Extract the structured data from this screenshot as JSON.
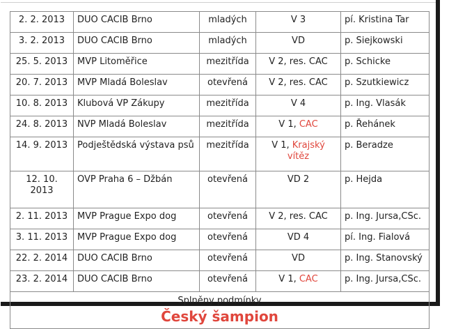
{
  "table": {
    "rows": [
      {
        "date": "2. 2. 2013",
        "show": "DUO CACIB Brno",
        "class": "mladých",
        "grade": "V 3",
        "grade_extra": "",
        "judge": "pí. Kristina Tar"
      },
      {
        "date": "3. 2. 2013",
        "show": "DUO CACIB Brno",
        "class": "mladých",
        "grade": "VD",
        "grade_extra": "",
        "judge": "p. Siejkowski"
      },
      {
        "date": "25. 5. 2013",
        "show": "MVP Litoměřice",
        "class": "mezitřída",
        "grade": "V 2, res. CAC",
        "grade_extra": "",
        "judge": "p. Schicke"
      },
      {
        "date": "20. 7. 2013",
        "show": "MVP Mladá Boleslav",
        "class": "otevřená",
        "grade": "V 2, res. CAC",
        "grade_extra": "",
        "judge": "p. Szutkiewicz"
      },
      {
        "date": "10. 8. 2013",
        "show": "Klubová VP Zákupy",
        "class": "mezitřída",
        "grade": "V 4",
        "grade_extra": "",
        "judge": "p. Ing. Vlasák"
      },
      {
        "date": "24. 8. 2013",
        "show": "NVP Mladá Boleslav",
        "class": "mezitřída",
        "grade": "V 1, ",
        "grade_extra": "CAC",
        "judge": "p. Řehánek"
      },
      {
        "date": "14. 9. 2013",
        "show": "Podještědská výstava psů",
        "class": "mezitřída",
        "grade": "V 1, ",
        "grade_extra": "Krajský vítěz",
        "judge": "p. Beradze"
      },
      {
        "date": "12. 10. 2013",
        "show": "OVP Praha 6 – Džbán",
        "class": "otevřená",
        "grade": "VD 2",
        "grade_extra": "",
        "judge": "p. Hejda"
      },
      {
        "date": "2. 11. 2013",
        "show": "MVP Prague Expo dog",
        "class": "otevřená",
        "grade": "V 2, res. CAC",
        "grade_extra": "",
        "judge": "p. Ing. Jursa,CSc."
      },
      {
        "date": "3. 11. 2013",
        "show": "MVP Prague Expo dog",
        "class": "otevřená",
        "grade": "VD 4",
        "grade_extra": "",
        "judge": "pí. Ing. Fialová"
      },
      {
        "date": "22. 2. 2014",
        "show": "DUO CACIB Brno",
        "class": "otevřená",
        "grade": "VD",
        "grade_extra": "",
        "judge": "p. Ing. Stanovský"
      },
      {
        "date": "23. 2. 2014",
        "show": "DUO CACIB Brno",
        "class": "otevřená",
        "grade": "V 1, ",
        "grade_extra": "CAC",
        "judge": "p. Ing. Jursa,CSc."
      }
    ]
  },
  "summary": {
    "line": "Splněny podmínky",
    "title": "Český šampion"
  },
  "colors": {
    "highlight": "#e0463c",
    "border": "#8a8a8a"
  }
}
